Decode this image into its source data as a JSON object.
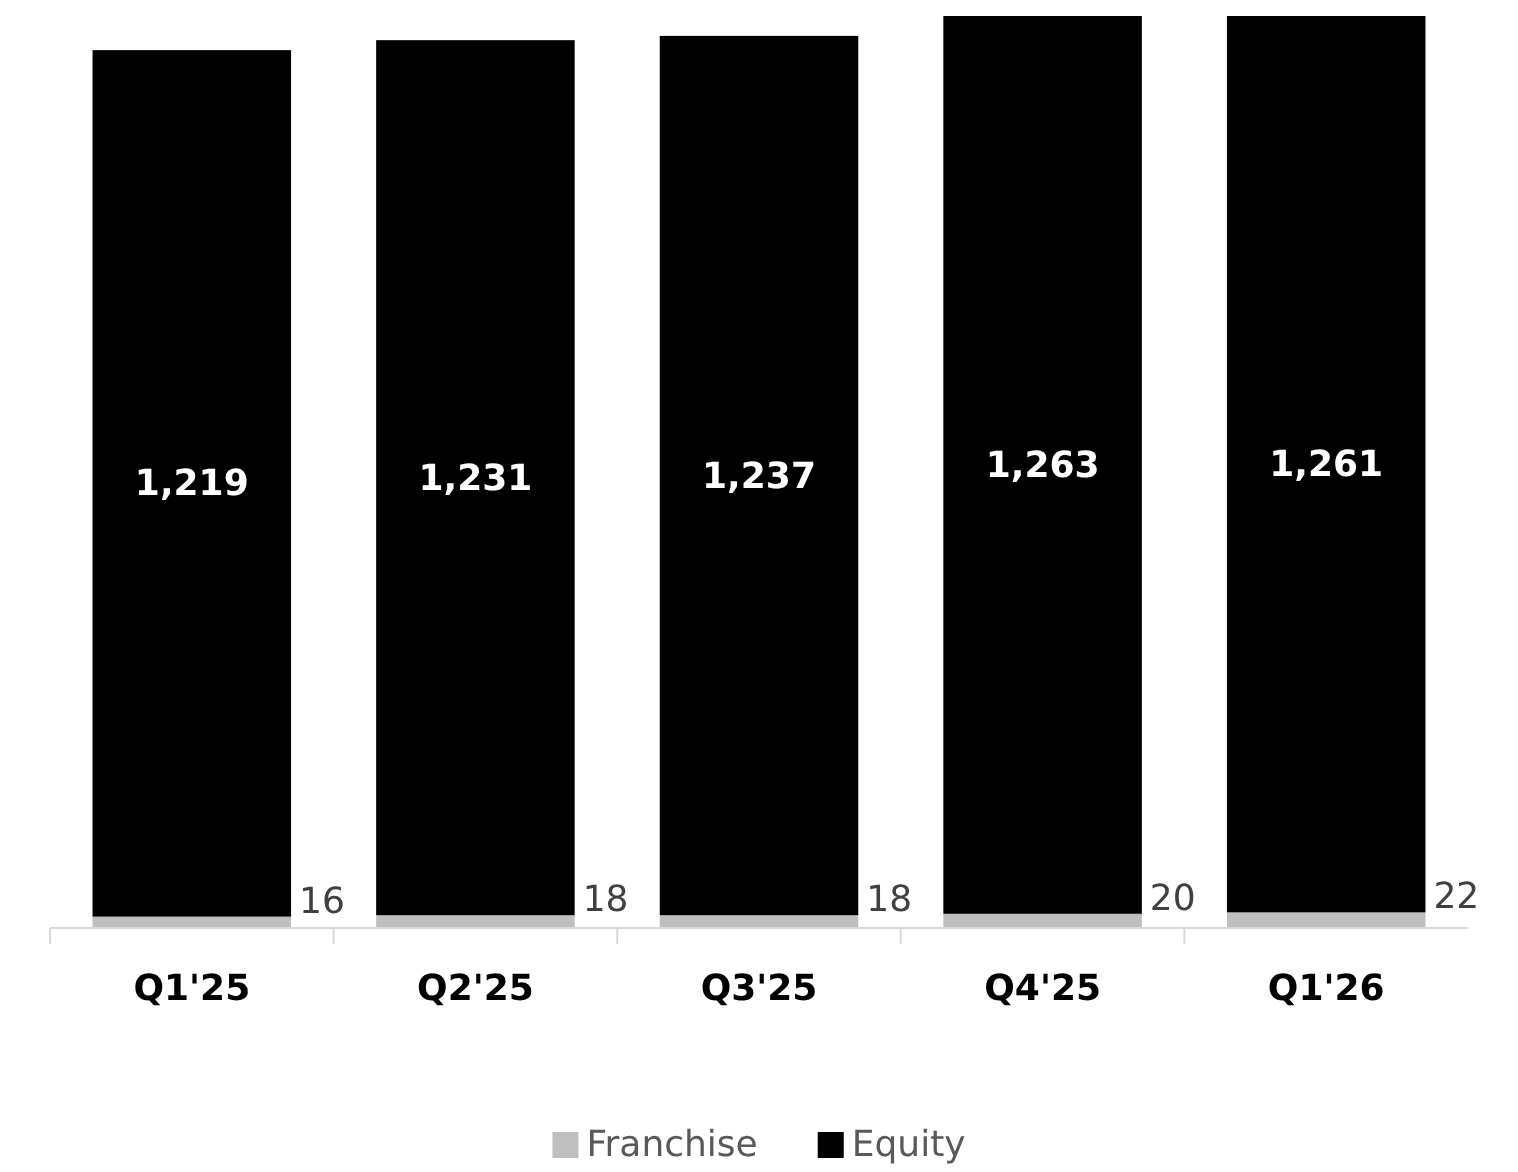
{
  "chart_data": {
    "type": "bar",
    "stacked": true,
    "legend": "bottom",
    "categories": [
      "Q1'25",
      "Q2'25",
      "Q3'25",
      "Q4'25",
      "Q1'26"
    ],
    "series": [
      {
        "name": "Franchise",
        "color": "#bfbfbf",
        "values": [
          16,
          18,
          18,
          20,
          22
        ],
        "value_labels": [
          "16",
          "18",
          "18",
          "20",
          "22"
        ]
      },
      {
        "name": "Equity",
        "color": "#000000",
        "values": [
          1219,
          1231,
          1237,
          1263,
          1261
        ],
        "value_labels": [
          "1,219",
          "1,231",
          "1,237",
          "1,263",
          "1,261"
        ]
      }
    ]
  }
}
